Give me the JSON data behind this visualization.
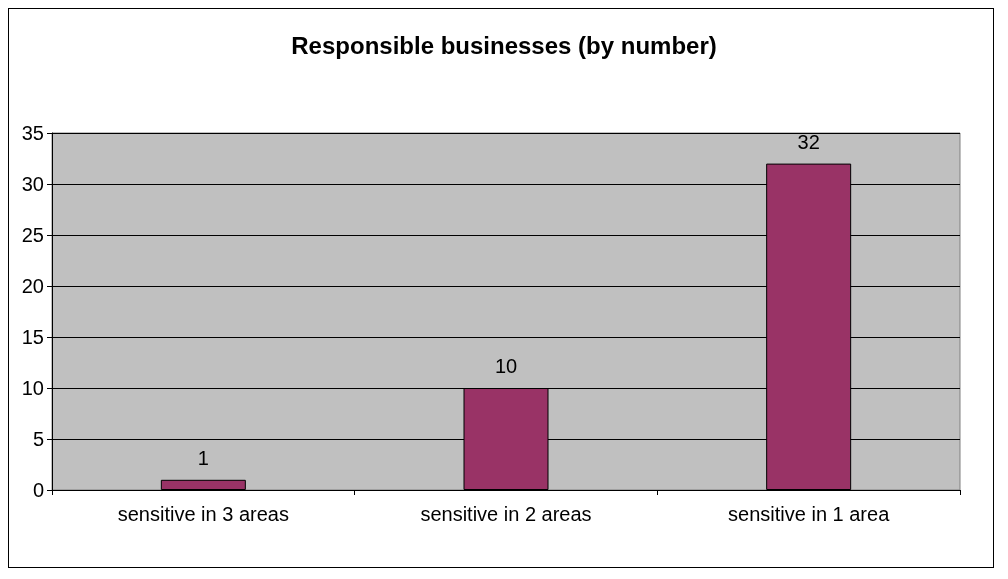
{
  "chart_data": {
    "type": "bar",
    "title": "Responsible businesses (by number)",
    "categories": [
      "sensitive in 3 areas",
      "sensitive in 2 areas",
      "sensitive in 1 area"
    ],
    "values": [
      1,
      10,
      32
    ],
    "color": "#993366",
    "ylim": [
      0,
      35
    ],
    "yticks": [
      0,
      5,
      10,
      15,
      20,
      25,
      30,
      35
    ],
    "grid": "y",
    "data_labels": true
  }
}
